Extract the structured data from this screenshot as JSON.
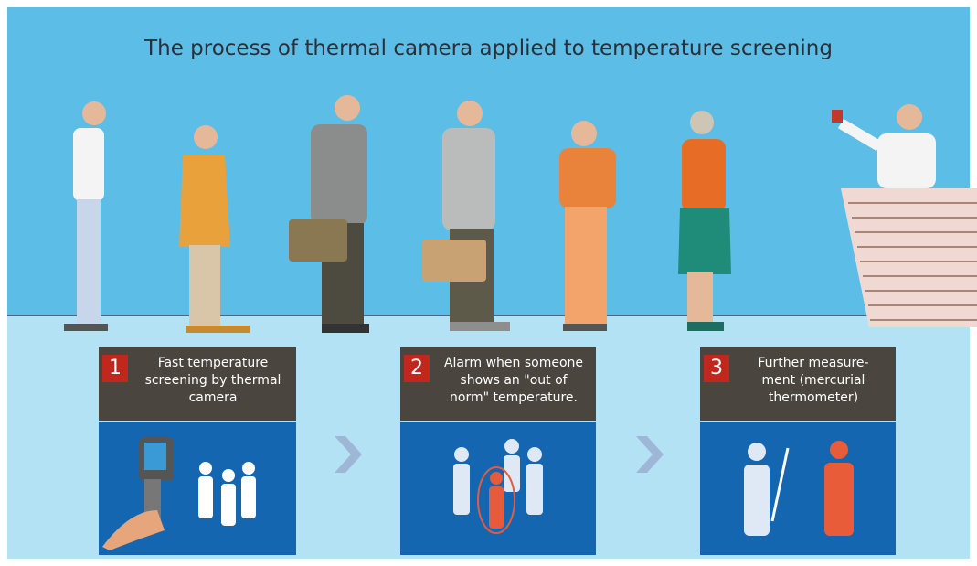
{
  "title": "The process of thermal camera applied to temperature screening",
  "steps": [
    {
      "number": "1",
      "lines": [
        "Fast temperature",
        "screening by thermal",
        "camera"
      ]
    },
    {
      "number": "2",
      "lines": [
        "Alarm when someone",
        "shows an \"out of",
        "norm\" temperature."
      ]
    },
    {
      "number": "3",
      "lines": [
        "Further measure-",
        "ment (mercurial",
        "thermometer)"
      ]
    }
  ]
}
